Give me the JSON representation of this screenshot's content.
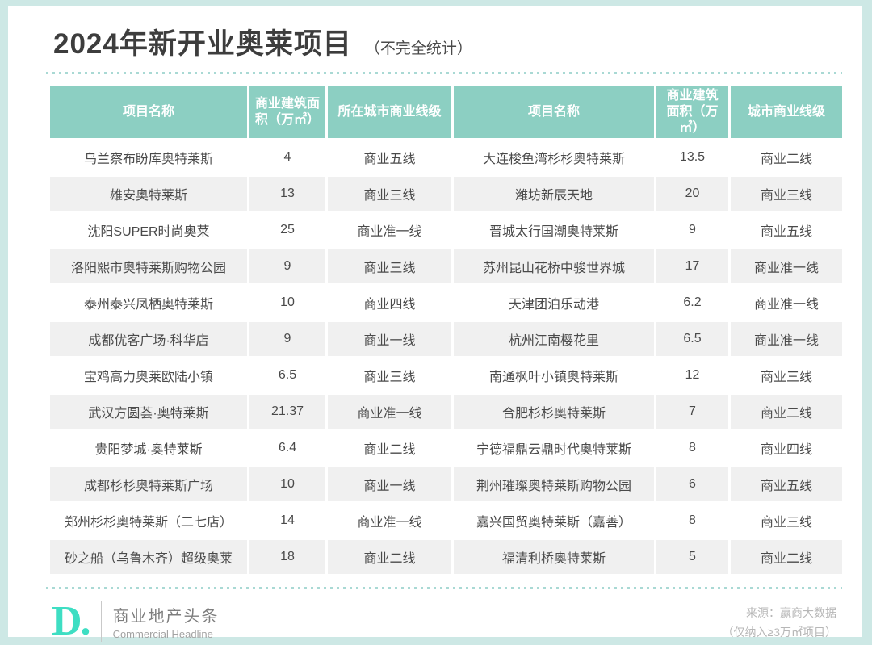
{
  "title": "2024年新开业奥莱项目",
  "subtitle": "（不完全统计）",
  "chart_data": {
    "type": "table",
    "title": "2024年新开业奥莱项目（不完全统计）",
    "columns": [
      "项目名称",
      "商业建筑面积（万㎡）",
      "所在城市商业线级"
    ],
    "rows": [
      [
        "乌兰察布盼库奥特莱斯",
        "4",
        "商业五线"
      ],
      [
        "雄安奥特莱斯",
        "13",
        "商业三线"
      ],
      [
        "沈阳SUPER时尚奥莱",
        "25",
        "商业准一线"
      ],
      [
        "洛阳熙市奥特莱斯购物公园",
        "9",
        "商业三线"
      ],
      [
        "泰州泰兴凤栖奥特莱斯",
        "10",
        "商业四线"
      ],
      [
        "成都优客广场·科华店",
        "9",
        "商业一线"
      ],
      [
        "宝鸡高力奥莱欧陆小镇",
        "6.5",
        "商业三线"
      ],
      [
        "武汉方圆荟·奥特莱斯",
        "21.37",
        "商业准一线"
      ],
      [
        "贵阳梦城·奥特莱斯",
        "6.4",
        "商业二线"
      ],
      [
        "成都杉杉奥特莱斯广场",
        "10",
        "商业一线"
      ],
      [
        "郑州杉杉奥特莱斯（二七店）",
        "14",
        "商业准一线"
      ],
      [
        "砂之船（乌鲁木齐）超级奥莱",
        "18",
        "商业二线"
      ],
      [
        "大连梭鱼湾杉杉奥特莱斯",
        "13.5",
        "商业二线"
      ],
      [
        "潍坊新辰天地",
        "20",
        "商业三线"
      ],
      [
        "晋城太行国潮奥特莱斯",
        "9",
        "商业五线"
      ],
      [
        "苏州昆山花桥中骏世界城",
        "17",
        "商业准一线"
      ],
      [
        "天津团泊乐动港",
        "6.2",
        "商业准一线"
      ],
      [
        "杭州江南樱花里",
        "6.5",
        "商业准一线"
      ],
      [
        "南通枫叶小镇奥特莱斯",
        "12",
        "商业三线"
      ],
      [
        "合肥杉杉奥特莱斯",
        "7",
        "商业二线"
      ],
      [
        "宁德福鼎云鼎时代奥特莱斯",
        "8",
        "商业四线"
      ],
      [
        "荆州璀璨奥特莱斯购物公园",
        "6",
        "商业五线"
      ],
      [
        "嘉兴国贸奥特莱斯（嘉善）",
        "8",
        "商业三线"
      ],
      [
        "福清利桥奥特莱斯",
        "5",
        "商业二线"
      ]
    ]
  },
  "table": {
    "headers": [
      "项目名称",
      "商业建筑面积（万㎡）",
      "所在城市商业线级",
      "项目名称",
      "商业建筑面积（万㎡）",
      "城市商业线级"
    ]
  },
  "footer": {
    "logo": "D.",
    "brand_cn": "商业地产头条",
    "brand_en": "Commercial Headline",
    "source_line1": "来源：赢商大数据",
    "source_line2": "（仅纳入≥3万㎡项目）"
  },
  "colors": {
    "header_bg": "#8ccfc2",
    "row_alt_bg": "#f0f0f0",
    "page_border": "#cde8e5",
    "logo_teal": "#3edec3",
    "dotted_line": "#a9d9d4",
    "header_text": "#ffffff",
    "body_text": "#4a4a4a"
  }
}
